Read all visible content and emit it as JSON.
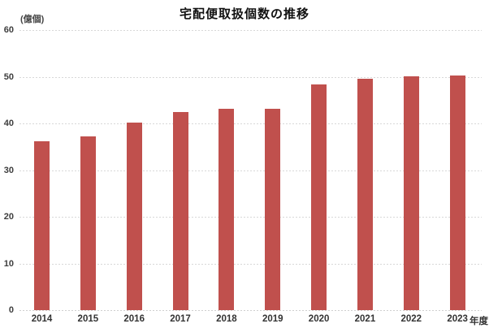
{
  "title": "宅配便取扱個数の推移",
  "y_axis_unit": "(億個)",
  "x_axis_unit": "年度",
  "colors": {
    "bar": "#c0504d",
    "gridline": "#d8d8d8",
    "text": "#333333",
    "title": "#111111",
    "background": "#ffffff"
  },
  "chart_data": {
    "type": "bar",
    "title": "宅配便取扱個数の推移",
    "categories": [
      "2014",
      "2015",
      "2016",
      "2017",
      "2018",
      "2019",
      "2020",
      "2021",
      "2022",
      "2023"
    ],
    "values": [
      36.1,
      37.3,
      40.2,
      42.5,
      43.1,
      43.2,
      48.4,
      49.5,
      50.1,
      50.2
    ],
    "xlabel": "年度",
    "ylabel": "(億個)",
    "ylim": [
      0,
      60
    ],
    "yticks": [
      0,
      10,
      20,
      30,
      40,
      50,
      60
    ],
    "grid": true,
    "legend": false
  }
}
